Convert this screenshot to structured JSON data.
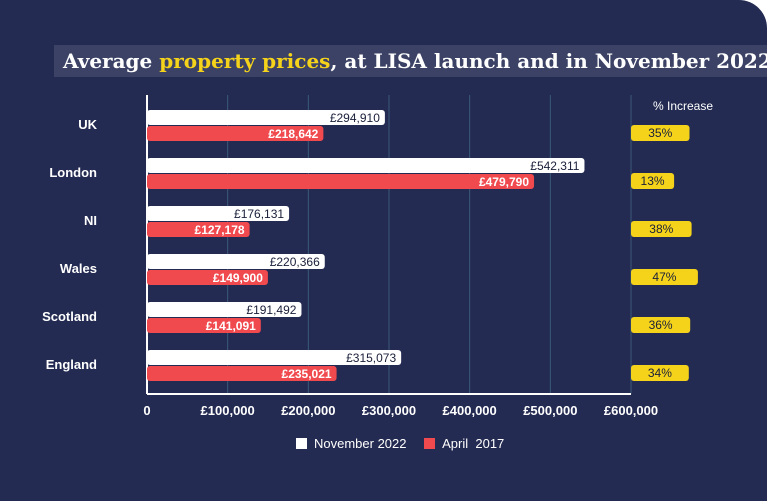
{
  "title": {
    "prefix": "Average ",
    "highlight": "property prices",
    "suffix": ", at LISA launch and in November 2022"
  },
  "colors": {
    "background": "#242b52",
    "nov2022": "#ffffff",
    "apr2017": "#f04a4f",
    "increase": "#f5d31a",
    "grid": "#3a5a7a",
    "highlight": "#f5d31a"
  },
  "chart_data": {
    "type": "bar",
    "orientation": "horizontal",
    "categories": [
      "UK",
      "London",
      "NI",
      "Wales",
      "Scotland",
      "England"
    ],
    "series": [
      {
        "name": "November 2022",
        "values": [
          294910,
          542311,
          176131,
          220366,
          191492,
          315073
        ],
        "labels": [
          "£294,910",
          "£542,311",
          "£176,131",
          "£220,366",
          "£191,492",
          "£315,073"
        ]
      },
      {
        "name": "April  2017",
        "values": [
          218642,
          479790,
          127178,
          149900,
          141091,
          235021
        ],
        "labels": [
          "£218,642",
          "£479,790",
          "£127,178",
          "£149,900",
          "£141,091",
          "£235,021"
        ]
      }
    ],
    "xlim": [
      0,
      600000
    ],
    "xticks": [
      0,
      100000,
      200000,
      300000,
      400000,
      500000,
      600000
    ],
    "xtick_labels": [
      "0",
      "£100,000",
      "£200,000",
      "£300,000",
      "£400,000",
      "£500,000",
      "£600,000"
    ],
    "grid": true,
    "increase_header": "% Increase",
    "increase_values": [
      35,
      13,
      38,
      47,
      36,
      34
    ],
    "increase_labels": [
      "35%",
      "13%",
      "38%",
      "47%",
      "36%",
      "34%"
    ]
  }
}
